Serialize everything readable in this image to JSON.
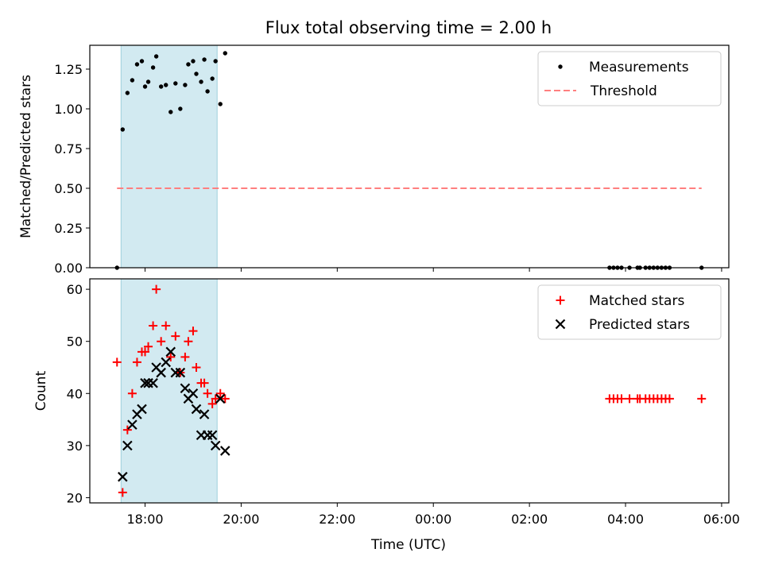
{
  "figure": {
    "title": "Flux total observing time = 2.00 h",
    "xlabel": "Time (UTC)"
  },
  "colors": {
    "shade": "#add8e6",
    "measurement": "#000000",
    "threshold": "#ff7f7f",
    "matched": "#ff0000",
    "predicted": "#000000"
  },
  "chart_data": [
    {
      "type": "scatter",
      "ylabel": "Matched/Predicted stars",
      "ylim": [
        0,
        1.4
      ],
      "yticks": [
        0.0,
        0.25,
        0.5,
        0.75,
        1.0,
        1.25
      ],
      "ytick_labels": [
        "0.00",
        "0.25",
        "0.50",
        "0.75",
        "1.00",
        "1.25"
      ],
      "xlim": [
        "16:51",
        "06:09"
      ],
      "xticks": [
        "18:00",
        "20:00",
        "22:00",
        "00:00",
        "02:00",
        "04:00",
        "06:00"
      ],
      "xticklabels_shown": false,
      "observing_window": [
        "17:30",
        "19:30"
      ],
      "legend": {
        "position": "top-right",
        "entries": [
          "Measurements",
          "Threshold"
        ]
      },
      "series": [
        {
          "name": "Measurements",
          "marker": "dot",
          "points": [
            [
              "17:25",
              0.0
            ],
            [
              "17:32",
              0.87
            ],
            [
              "17:38",
              1.1
            ],
            [
              "17:44",
              1.18
            ],
            [
              "17:50",
              1.28
            ],
            [
              "17:56",
              1.3
            ],
            [
              "18:00",
              1.14
            ],
            [
              "18:04",
              1.17
            ],
            [
              "18:10",
              1.26
            ],
            [
              "18:14",
              1.33
            ],
            [
              "18:20",
              1.14
            ],
            [
              "18:26",
              1.15
            ],
            [
              "18:32",
              0.98
            ],
            [
              "18:38",
              1.16
            ],
            [
              "18:44",
              1.0
            ],
            [
              "18:50",
              1.15
            ],
            [
              "18:54",
              1.28
            ],
            [
              "19:00",
              1.3
            ],
            [
              "19:04",
              1.22
            ],
            [
              "19:10",
              1.17
            ],
            [
              "19:14",
              1.31
            ],
            [
              "19:18",
              1.11
            ],
            [
              "19:24",
              1.19
            ],
            [
              "19:28",
              1.3
            ],
            [
              "19:34",
              1.03
            ],
            [
              "19:40",
              1.35
            ],
            [
              "03:40",
              0.0
            ],
            [
              "03:45",
              0.0
            ],
            [
              "03:50",
              0.0
            ],
            [
              "03:55",
              0.0
            ],
            [
              "04:05",
              0.0
            ],
            [
              "04:15",
              0.0
            ],
            [
              "04:18",
              0.0
            ],
            [
              "04:25",
              0.0
            ],
            [
              "04:30",
              0.0
            ],
            [
              "04:35",
              0.0
            ],
            [
              "04:40",
              0.0
            ],
            [
              "04:45",
              0.0
            ],
            [
              "04:50",
              0.0
            ],
            [
              "04:55",
              0.0
            ],
            [
              "05:35",
              0.0
            ]
          ]
        },
        {
          "name": "Threshold",
          "marker": "dashed-line",
          "points": [
            [
              "17:25",
              0.5
            ],
            [
              "05:35",
              0.5
            ]
          ]
        }
      ]
    },
    {
      "type": "scatter",
      "ylabel": "Count",
      "ylim": [
        19,
        62
      ],
      "yticks": [
        20,
        30,
        40,
        50,
        60
      ],
      "ytick_labels": [
        "20",
        "30",
        "40",
        "50",
        "60"
      ],
      "xlim": [
        "16:51",
        "06:09"
      ],
      "xticks": [
        "18:00",
        "20:00",
        "22:00",
        "00:00",
        "02:00",
        "04:00",
        "06:00"
      ],
      "xticklabels_shown": true,
      "observing_window": [
        "17:30",
        "19:30"
      ],
      "legend": {
        "position": "top-right",
        "entries": [
          "Matched stars",
          "Predicted stars"
        ]
      },
      "series": [
        {
          "name": "Matched stars",
          "marker": "plus",
          "points": [
            [
              "17:25",
              46
            ],
            [
              "17:32",
              21
            ],
            [
              "17:38",
              33
            ],
            [
              "17:44",
              40
            ],
            [
              "17:50",
              46
            ],
            [
              "17:56",
              48
            ],
            [
              "18:00",
              48
            ],
            [
              "18:04",
              49
            ],
            [
              "18:10",
              53
            ],
            [
              "18:14",
              60
            ],
            [
              "18:20",
              50
            ],
            [
              "18:26",
              53
            ],
            [
              "18:32",
              47
            ],
            [
              "18:38",
              51
            ],
            [
              "18:44",
              44
            ],
            [
              "18:50",
              47
            ],
            [
              "18:54",
              50
            ],
            [
              "19:00",
              52
            ],
            [
              "19:04",
              45
            ],
            [
              "19:10",
              42
            ],
            [
              "19:14",
              42
            ],
            [
              "19:18",
              40
            ],
            [
              "19:24",
              38
            ],
            [
              "19:28",
              39
            ],
            [
              "19:34",
              40
            ],
            [
              "19:40",
              39
            ],
            [
              "03:40",
              39
            ],
            [
              "03:45",
              39
            ],
            [
              "03:50",
              39
            ],
            [
              "03:55",
              39
            ],
            [
              "04:05",
              39
            ],
            [
              "04:15",
              39
            ],
            [
              "04:18",
              39
            ],
            [
              "04:25",
              39
            ],
            [
              "04:30",
              39
            ],
            [
              "04:35",
              39
            ],
            [
              "04:40",
              39
            ],
            [
              "04:45",
              39
            ],
            [
              "04:50",
              39
            ],
            [
              "04:55",
              39
            ],
            [
              "05:35",
              39
            ]
          ]
        },
        {
          "name": "Predicted stars",
          "marker": "x",
          "points": [
            [
              "17:32",
              24
            ],
            [
              "17:38",
              30
            ],
            [
              "17:44",
              34
            ],
            [
              "17:50",
              36
            ],
            [
              "17:56",
              37
            ],
            [
              "18:00",
              42
            ],
            [
              "18:04",
              42
            ],
            [
              "18:10",
              42
            ],
            [
              "18:14",
              45
            ],
            [
              "18:20",
              44
            ],
            [
              "18:26",
              46
            ],
            [
              "18:32",
              48
            ],
            [
              "18:38",
              44
            ],
            [
              "18:44",
              44
            ],
            [
              "18:50",
              41
            ],
            [
              "18:54",
              39
            ],
            [
              "19:00",
              40
            ],
            [
              "19:04",
              37
            ],
            [
              "19:10",
              32
            ],
            [
              "19:14",
              36
            ],
            [
              "19:18",
              32
            ],
            [
              "19:24",
              32
            ],
            [
              "19:28",
              30
            ],
            [
              "19:34",
              39
            ],
            [
              "19:40",
              29
            ]
          ]
        }
      ]
    }
  ]
}
